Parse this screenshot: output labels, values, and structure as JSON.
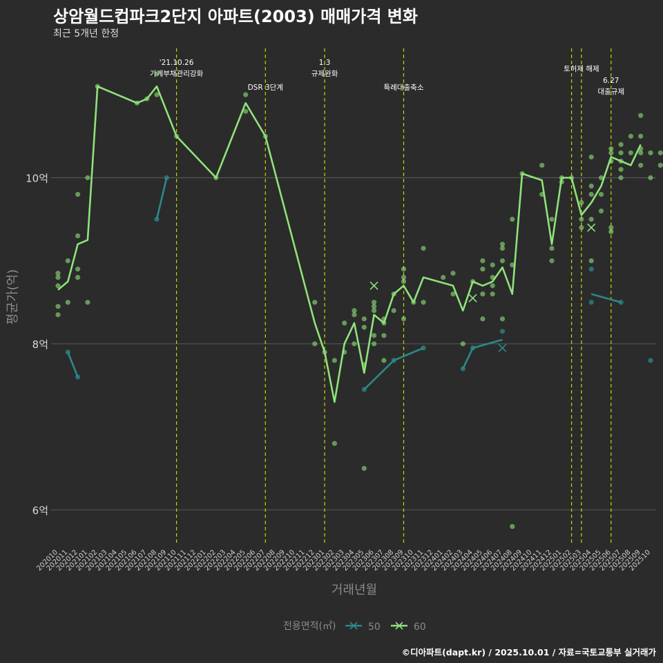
{
  "title": "상암월드컵파크2단지 아파트(2003) 매매가격 변화",
  "subtitle": "최근 5개년 한정",
  "caption": "©디아파트(dapt.kr) / 2025.10.01 / 자료=국토교통부 실거래가",
  "colors": {
    "bg": "#2b2b2b",
    "grid": "#555555",
    "vline": "#c8d400",
    "s50": "#2a8a8c",
    "s60": "#8fe37a"
  },
  "chart_data": {
    "type": "line",
    "title": "상암월드컵파크2단지 아파트(2003) 매매가격 변화",
    "xlabel": "거래년월",
    "ylabel": "평균가(억)",
    "ylim": [
      5.57,
      11.6
    ],
    "yticks": [
      {
        "v": 6,
        "label": "6억"
      },
      {
        "v": 8,
        "label": "8억"
      },
      {
        "v": 10,
        "label": "10억"
      }
    ],
    "x_start": {
      "year": 2020,
      "month": 10
    },
    "x_count": 61,
    "legend": {
      "title": "전용면적(㎡)",
      "position": "bottom",
      "entries": [
        "50",
        "60"
      ]
    },
    "annotations": [
      {
        "idx": 12,
        "lines": [
          "'21.10.26",
          "가계부채관리강화"
        ],
        "row": 0
      },
      {
        "idx": 21,
        "lines": [
          "DSR 3단계"
        ],
        "row": 1
      },
      {
        "idx": 27,
        "lines": [
          "1.3",
          "규제완화"
        ],
        "row": 0
      },
      {
        "idx": 35,
        "lines": [
          "특례대출축소"
        ],
        "row": 1
      },
      {
        "idx": 52,
        "lines": [],
        "row": 0
      },
      {
        "idx": 53,
        "lines": [
          "토허제 해제"
        ],
        "row": 0
      },
      {
        "idx": 56,
        "lines": [
          "6.27",
          "대출규제"
        ],
        "row": 1
      }
    ],
    "series": [
      {
        "name": "60",
        "line": [
          [
            0,
            8.65
          ],
          [
            1,
            8.75
          ],
          [
            2,
            9.2
          ],
          [
            3,
            9.25
          ],
          [
            4,
            11.1
          ],
          [
            8,
            10.9
          ],
          [
            9,
            10.95
          ],
          [
            10,
            11.1
          ],
          [
            12,
            10.5
          ],
          [
            16,
            10.0
          ],
          [
            19,
            10.9
          ],
          [
            21,
            10.5
          ],
          [
            26,
            8.25
          ],
          [
            27,
            7.9
          ],
          [
            28,
            7.3
          ],
          [
            29,
            8.0
          ],
          [
            30,
            8.25
          ],
          [
            31,
            7.65
          ],
          [
            32,
            8.35
          ],
          [
            33,
            8.25
          ],
          [
            34,
            8.6
          ],
          [
            35,
            8.7
          ],
          [
            36,
            8.5
          ],
          [
            37,
            8.8
          ],
          [
            40,
            8.7
          ],
          [
            41,
            8.4
          ],
          [
            42,
            8.75
          ],
          [
            43,
            8.7
          ],
          [
            44,
            8.75
          ],
          [
            45,
            8.92
          ],
          [
            46,
            8.6
          ],
          [
            47,
            10.05
          ],
          [
            49,
            9.97
          ],
          [
            50,
            9.2
          ],
          [
            51,
            10.0
          ],
          [
            52,
            10.0
          ],
          [
            53,
            9.55
          ],
          [
            54,
            9.7
          ],
          [
            55,
            9.9
          ],
          [
            56,
            10.25
          ],
          [
            58,
            10.15
          ],
          [
            59,
            10.4
          ]
        ],
        "points": [
          [
            0,
            8.85
          ],
          [
            0,
            8.8
          ],
          [
            0,
            8.7
          ],
          [
            0,
            8.45
          ],
          [
            0,
            8.35
          ],
          [
            1,
            9.0
          ],
          [
            1,
            8.5
          ],
          [
            2,
            9.8
          ],
          [
            2,
            9.3
          ],
          [
            2,
            8.9
          ],
          [
            2,
            8.8
          ],
          [
            3,
            10.0
          ],
          [
            3,
            8.5
          ],
          [
            4,
            11.1
          ],
          [
            8,
            10.9
          ],
          [
            9,
            10.95
          ],
          [
            10,
            11.25
          ],
          [
            10,
            11.0
          ],
          [
            12,
            10.5
          ],
          [
            16,
            10.0
          ],
          [
            19,
            11.0
          ],
          [
            19,
            10.8
          ],
          [
            21,
            10.5
          ],
          [
            26,
            8.5
          ],
          [
            26,
            8.0
          ],
          [
            27,
            7.9
          ],
          [
            28,
            7.8
          ],
          [
            28,
            6.8
          ],
          [
            29,
            8.25
          ],
          [
            29,
            7.9
          ],
          [
            30,
            8.4
          ],
          [
            30,
            8.35
          ],
          [
            30,
            8.0
          ],
          [
            31,
            8.3
          ],
          [
            31,
            8.2
          ],
          [
            31,
            7.75
          ],
          [
            31,
            6.5
          ],
          [
            32,
            8.5
          ],
          [
            32,
            8.45
          ],
          [
            32,
            8.4
          ],
          [
            32,
            8.1
          ],
          [
            32,
            8.0
          ],
          [
            33,
            8.3
          ],
          [
            33,
            8.25
          ],
          [
            33,
            8.1
          ],
          [
            33,
            7.8
          ],
          [
            34,
            8.4
          ],
          [
            34,
            8.6
          ],
          [
            35,
            8.9
          ],
          [
            35,
            8.8
          ],
          [
            35,
            8.75
          ],
          [
            35,
            8.3
          ],
          [
            36,
            8.5
          ],
          [
            37,
            9.15
          ],
          [
            37,
            8.5
          ],
          [
            39,
            8.8
          ],
          [
            40,
            8.85
          ],
          [
            40,
            8.6
          ],
          [
            41,
            8.0
          ],
          [
            42,
            8.75
          ],
          [
            43,
            9.0
          ],
          [
            43,
            8.9
          ],
          [
            43,
            8.6
          ],
          [
            43,
            8.3
          ],
          [
            44,
            8.95
          ],
          [
            44,
            8.8
          ],
          [
            44,
            8.7
          ],
          [
            44,
            8.6
          ],
          [
            45,
            9.0
          ],
          [
            45,
            9.2
          ],
          [
            45,
            9.15
          ],
          [
            45,
            8.3
          ],
          [
            46,
            9.5
          ],
          [
            46,
            8.95
          ],
          [
            46,
            5.8
          ],
          [
            47,
            10.05
          ],
          [
            49,
            10.15
          ],
          [
            49,
            9.8
          ],
          [
            50,
            9.5
          ],
          [
            50,
            9.15
          ],
          [
            50,
            9.0
          ],
          [
            51,
            10.0
          ],
          [
            51,
            9.95
          ],
          [
            52,
            10.0
          ],
          [
            53,
            9.7
          ],
          [
            53,
            9.5
          ],
          [
            53,
            9.4
          ],
          [
            54,
            10.25
          ],
          [
            54,
            9.9
          ],
          [
            54,
            9.8
          ],
          [
            54,
            9.5
          ],
          [
            54,
            9.0
          ],
          [
            55,
            10.0
          ],
          [
            55,
            9.8
          ],
          [
            55,
            9.6
          ],
          [
            56,
            10.3
          ],
          [
            56,
            10.35
          ],
          [
            56,
            10.2
          ],
          [
            56,
            9.4
          ],
          [
            56,
            9.35
          ],
          [
            57,
            10.4
          ],
          [
            57,
            10.3
          ],
          [
            57,
            10.1
          ],
          [
            57,
            10.0
          ],
          [
            57,
            10.2
          ],
          [
            58,
            10.5
          ],
          [
            58,
            10.3
          ],
          [
            59,
            10.75
          ],
          [
            59,
            10.5
          ],
          [
            59,
            10.35
          ],
          [
            59,
            10.3
          ],
          [
            59,
            10.15
          ],
          [
            60,
            10.0
          ],
          [
            60,
            10.3
          ],
          [
            61,
            10.3
          ],
          [
            61,
            10.15
          ]
        ],
        "crosses": [
          [
            32,
            8.7
          ],
          [
            42,
            8.55
          ],
          [
            54,
            9.4
          ]
        ]
      },
      {
        "name": "50",
        "line": [
          [
            1,
            7.9
          ],
          [
            2,
            7.6
          ]
        ],
        "line2": [
          [
            10,
            9.5
          ],
          [
            11,
            10.0
          ]
        ],
        "line3": [
          [
            31,
            7.45
          ],
          [
            34,
            7.8
          ],
          [
            37,
            7.95
          ]
        ],
        "line4": [
          [
            41,
            7.7
          ],
          [
            42,
            7.95
          ],
          [
            45,
            8.05
          ]
        ],
        "line5": [
          [
            54,
            8.6
          ],
          [
            57,
            8.5
          ]
        ],
        "points": [
          [
            1,
            7.9
          ],
          [
            2,
            7.6
          ],
          [
            10,
            9.5
          ],
          [
            11,
            10.0
          ],
          [
            31,
            7.45
          ],
          [
            34,
            7.8
          ],
          [
            37,
            7.95
          ],
          [
            41,
            7.7
          ],
          [
            42,
            7.95
          ],
          [
            45,
            8.15
          ],
          [
            54,
            8.9
          ],
          [
            54,
            8.5
          ],
          [
            57,
            8.5
          ],
          [
            60,
            7.8
          ]
        ],
        "crosses": [
          [
            45,
            7.95
          ]
        ]
      }
    ]
  }
}
